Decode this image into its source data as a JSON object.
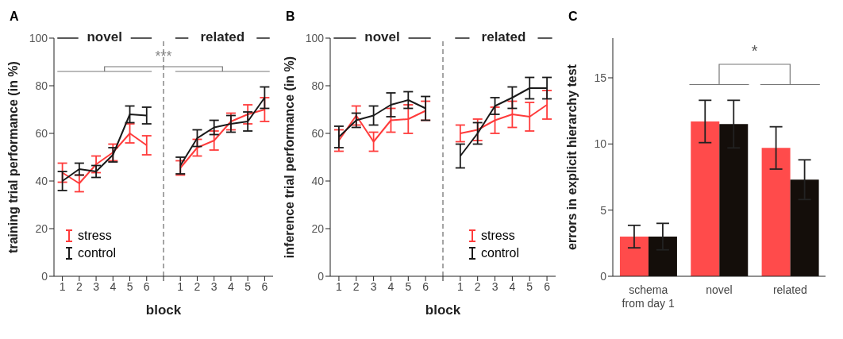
{
  "chart_data": [
    {
      "type": "line",
      "title": "A",
      "xlabel": "block",
      "ylabel": "training trial performance (in %)",
      "categories": [
        "1",
        "2",
        "3",
        "4",
        "5",
        "6",
        null,
        "1",
        "2",
        "3",
        "4",
        "5",
        "6"
      ],
      "series": [
        {
          "name": "stress",
          "color": "#ff3b3b",
          "values": [
            43.5,
            39,
            47,
            52,
            60,
            55,
            null,
            45.5,
            54,
            57,
            65,
            68,
            70
          ],
          "errors": [
            4,
            3.5,
            3.5,
            3.5,
            4,
            4,
            null,
            3,
            3.5,
            4,
            3.5,
            4,
            5
          ]
        },
        {
          "name": "control",
          "color": "#1a1a1a",
          "values": [
            40,
            45,
            44,
            51,
            68,
            67.5,
            null,
            46.5,
            58,
            62.5,
            64,
            65,
            75
          ],
          "errors": [
            4,
            2.5,
            2.5,
            3,
            3.5,
            3.5,
            null,
            3.5,
            3.5,
            3,
            3.5,
            4,
            4.5
          ]
        }
      ],
      "ylim": [
        0,
        100
      ],
      "yticks": [
        0,
        20,
        40,
        60,
        80,
        100
      ],
      "ref_lines": [
        {
          "axis": "x",
          "color": "#888888",
          "line_style": "dashed"
        }
      ],
      "annotations": [
        "novel",
        "related",
        "***"
      ],
      "legend": "bottom left"
    },
    {
      "type": "line",
      "title": "B",
      "xlabel": "block",
      "ylabel": "inference trial performance (in %)",
      "categories": [
        "1",
        "2",
        "3",
        "4",
        "5",
        "6",
        null,
        "1",
        "2",
        "3",
        "4",
        "5",
        "6"
      ],
      "series": [
        {
          "name": "stress",
          "color": "#ff3b3b",
          "values": [
            57,
            67.5,
            56.5,
            65.5,
            66,
            69.5,
            null,
            60,
            61.5,
            65.5,
            68,
            67,
            72
          ],
          "errors": [
            4.5,
            4,
            4,
            5,
            6,
            4,
            null,
            3.5,
            4.5,
            5.5,
            5.5,
            6,
            6
          ]
        },
        {
          "name": "control",
          "color": "#1a1a1a",
          "values": [
            58.5,
            65.5,
            67.5,
            72,
            74,
            70.5,
            null,
            50.5,
            60,
            71.5,
            75,
            79,
            79
          ],
          "errors": [
            4.5,
            3,
            4,
            5,
            3.5,
            5,
            null,
            5,
            4.5,
            3.5,
            4.5,
            4.5,
            4.5
          ]
        }
      ],
      "ylim": [
        0,
        100
      ],
      "yticks": [
        0,
        20,
        40,
        60,
        80,
        100
      ],
      "ref_lines": [
        {
          "axis": "x",
          "color": "#888888",
          "line_style": "dashed"
        }
      ],
      "annotations": [
        "novel",
        "related"
      ],
      "legend": "bottom right"
    },
    {
      "type": "bar",
      "title": "C",
      "ylabel": "errors in explicit hierarchy test",
      "categories": [
        "schema from day 1",
        "novel",
        "related"
      ],
      "series": [
        {
          "color": "#ff4b4b",
          "values": [
            3.0,
            11.7,
            9.7
          ],
          "errors": [
            0.85,
            1.6,
            1.6
          ]
        },
        {
          "color": "#140e0a",
          "values": [
            3.0,
            11.5,
            7.3
          ],
          "errors": [
            1,
            1.8,
            1.5
          ]
        }
      ],
      "ylim": [
        0,
        18
      ],
      "yticks": [
        0,
        5,
        10,
        15
      ],
      "annotations": [
        "*"
      ]
    }
  ]
}
